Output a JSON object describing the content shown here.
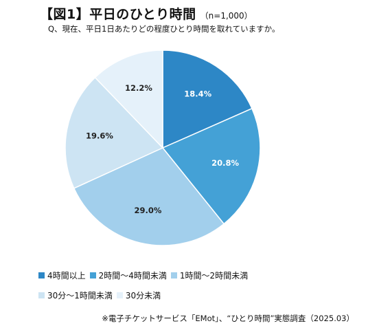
{
  "header": {
    "title": "【図1】平日のひとり時間",
    "sample": "（n=1,000）",
    "question": "Q、現在、平日1日あたりどの程度ひとり時間を取れていますか。"
  },
  "chart_data": {
    "type": "pie",
    "start_angle_deg": 0,
    "direction": "clockwise",
    "slices": [
      {
        "label": "4時間以上",
        "value": 18.4,
        "display": "18.4%",
        "color": "#2d87c6",
        "label_color": "#ffffff"
      },
      {
        "label": "2時間～4時間未満",
        "value": 20.8,
        "display": "20.8%",
        "color": "#44a1d6",
        "label_color": "#ffffff"
      },
      {
        "label": "1時間～2時間未満",
        "value": 29.0,
        "display": "29.0%",
        "color": "#a2cfec",
        "label_color": "#222222"
      },
      {
        "label": "30分～1時間未満",
        "value": 19.6,
        "display": "19.6%",
        "color": "#cde4f3",
        "label_color": "#222222"
      },
      {
        "label": "30分未満",
        "value": 12.2,
        "display": "12.2%",
        "color": "#e5f1fa",
        "label_color": "#222222"
      }
    ]
  },
  "source": "※電子チケットサービス「EMot」、“ひとり時間”実態調査（2025.03）"
}
